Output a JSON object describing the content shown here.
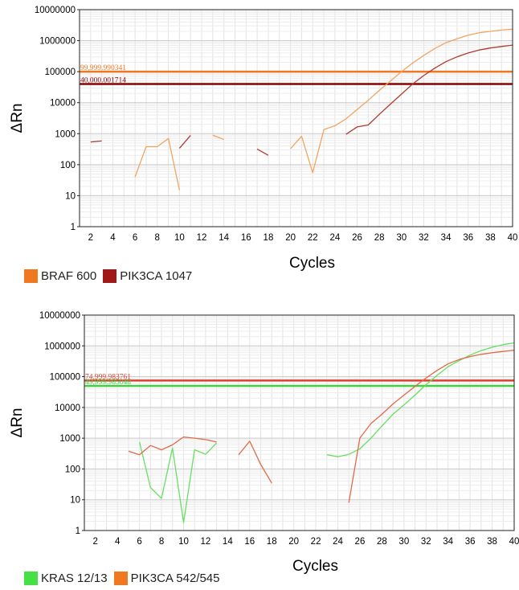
{
  "chart_data": [
    {
      "type": "line",
      "ylabel": "ΔRn",
      "xlabel": "Cycles",
      "xlim": [
        1,
        40
      ],
      "ylim": [
        1,
        10000000
      ],
      "yscale": "log",
      "x_ticks": [
        2,
        4,
        6,
        8,
        10,
        12,
        14,
        16,
        18,
        20,
        22,
        24,
        26,
        28,
        30,
        32,
        34,
        36,
        38,
        40
      ],
      "y_ticks": [
        "1",
        "10",
        "100",
        "1000",
        "10000",
        "100000",
        "1000000",
        "10000000"
      ],
      "grid": true,
      "legend_position": "bottom-left",
      "series": [
        {
          "name": "BRAF 600",
          "color": "#F4A460",
          "segments": [
            [
              [
                6,
                40
              ],
              [
                7,
                380
              ],
              [
                8,
                380
              ],
              [
                9,
                700
              ],
              [
                10,
                15
              ]
            ],
            [
              [
                13,
                900
              ],
              [
                14,
                650
              ]
            ],
            [
              [
                20,
                330
              ],
              [
                21,
                830
              ],
              [
                22,
                55
              ],
              [
                23,
                1350
              ],
              [
                24,
                1800
              ],
              [
                25,
                3000
              ],
              [
                26,
                6000
              ],
              [
                27,
                12000
              ],
              [
                28,
                25000
              ],
              [
                29,
                50000
              ],
              [
                30,
                100000
              ],
              [
                31,
                190000
              ],
              [
                32,
                330000
              ],
              [
                33,
                560000
              ],
              [
                34,
                860000
              ],
              [
                35,
                1150000
              ],
              [
                36,
                1500000
              ],
              [
                37,
                1800000
              ],
              [
                38,
                2000000
              ],
              [
                39,
                2200000
              ],
              [
                40,
                2350000
              ]
            ]
          ]
        },
        {
          "name": "PIK3CA 1047",
          "color": "#B03A2E",
          "segments": [
            [
              [
                2,
                540
              ],
              [
                3,
                580
              ]
            ],
            [
              [
                10,
                340
              ],
              [
                11,
                880
              ]
            ],
            [
              [
                17,
                320
              ],
              [
                18,
                200
              ]
            ],
            [
              [
                25,
                950
              ],
              [
                26,
                1650
              ],
              [
                27,
                1900
              ],
              [
                28,
                4200
              ],
              [
                29,
                9000
              ],
              [
                30,
                19000
              ],
              [
                31,
                40000
              ],
              [
                32,
                75000
              ],
              [
                33,
                130000
              ],
              [
                34,
                210000
              ],
              [
                35,
                300000
              ],
              [
                36,
                400000
              ],
              [
                37,
                500000
              ],
              [
                38,
                580000
              ],
              [
                39,
                650000
              ],
              [
                40,
                720000
              ]
            ]
          ]
        }
      ],
      "thresholds": [
        {
          "series": "BRAF 600",
          "label": "99,999.990341",
          "value": 99999.990341,
          "color": "#F07820"
        },
        {
          "series": "PIK3CA 1047",
          "label": "40,000.001714",
          "value": 40000.001714,
          "color": "#8B0000"
        }
      ]
    },
    {
      "type": "line",
      "ylabel": "ΔRn",
      "xlabel": "Cycles",
      "xlim": [
        1,
        40
      ],
      "ylim": [
        1,
        10000000
      ],
      "yscale": "log",
      "x_ticks": [
        2,
        4,
        6,
        8,
        10,
        12,
        14,
        16,
        18,
        20,
        22,
        24,
        26,
        28,
        30,
        32,
        34,
        36,
        38,
        40
      ],
      "y_ticks": [
        "1",
        "10",
        "100",
        "1000",
        "10000",
        "100000",
        "1000000",
        "10000000"
      ],
      "grid": true,
      "legend_position": "bottom-left",
      "series": [
        {
          "name": "KRAS 12/13",
          "color": "#66E060",
          "segments": [
            [
              [
                6,
                750
              ],
              [
                7,
                25
              ],
              [
                8,
                11
              ],
              [
                9,
                480
              ],
              [
                10,
                1.8
              ],
              [
                11,
                420
              ],
              [
                12,
                300
              ],
              [
                13,
                700
              ]
            ],
            [
              [
                23,
                290
              ],
              [
                24,
                250
              ],
              [
                25,
                300
              ],
              [
                26,
                450
              ],
              [
                27,
                1000
              ],
              [
                28,
                2500
              ],
              [
                29,
                6000
              ],
              [
                30,
                12000
              ],
              [
                31,
                25000
              ],
              [
                32,
                55000
              ],
              [
                33,
                110000
              ],
              [
                34,
                210000
              ],
              [
                35,
                330000
              ],
              [
                36,
                500000
              ],
              [
                37,
                700000
              ],
              [
                38,
                900000
              ],
              [
                39,
                1100000
              ],
              [
                40,
                1250000
              ]
            ]
          ]
        },
        {
          "name": "PIK3CA 542/545",
          "color": "#E06A4A",
          "segments": [
            [
              [
                5,
                380
              ],
              [
                6,
                290
              ],
              [
                7,
                580
              ],
              [
                8,
                420
              ],
              [
                9,
                610
              ],
              [
                10,
                1100
              ],
              [
                11,
                1000
              ],
              [
                12,
                900
              ],
              [
                13,
                750
              ]
            ],
            [
              [
                15,
                290
              ],
              [
                16,
                800
              ],
              [
                17,
                140
              ],
              [
                18,
                35
              ]
            ],
            [
              [
                25,
                8
              ],
              [
                26,
                1000
              ],
              [
                27,
                3000
              ],
              [
                28,
                6000
              ],
              [
                29,
                13000
              ],
              [
                30,
                25000
              ],
              [
                31,
                48000
              ],
              [
                32,
                90000
              ],
              [
                33,
                160000
              ],
              [
                34,
                260000
              ],
              [
                35,
                360000
              ],
              [
                36,
                450000
              ],
              [
                37,
                530000
              ],
              [
                38,
                600000
              ],
              [
                39,
                660000
              ],
              [
                40,
                720000
              ]
            ]
          ]
        }
      ],
      "thresholds": [
        {
          "series": "PIK3CA 542/545",
          "label": "74,999.983761",
          "value": 74999.983761,
          "color": "#E04030"
        },
        {
          "series": "KRAS 12/13",
          "label": "49,999.985048",
          "value": 49999.985048,
          "color": "#40D040"
        }
      ]
    }
  ],
  "legends": [
    {
      "items": [
        {
          "label": "BRAF 600",
          "color": "#F07820"
        },
        {
          "label": "PIK3CA 1047",
          "color": "#A01818"
        }
      ]
    },
    {
      "items": [
        {
          "label": "KRAS 12/13",
          "color": "#44E044"
        },
        {
          "label": "PIK3CA 542/545",
          "color": "#F07820"
        }
      ]
    }
  ]
}
